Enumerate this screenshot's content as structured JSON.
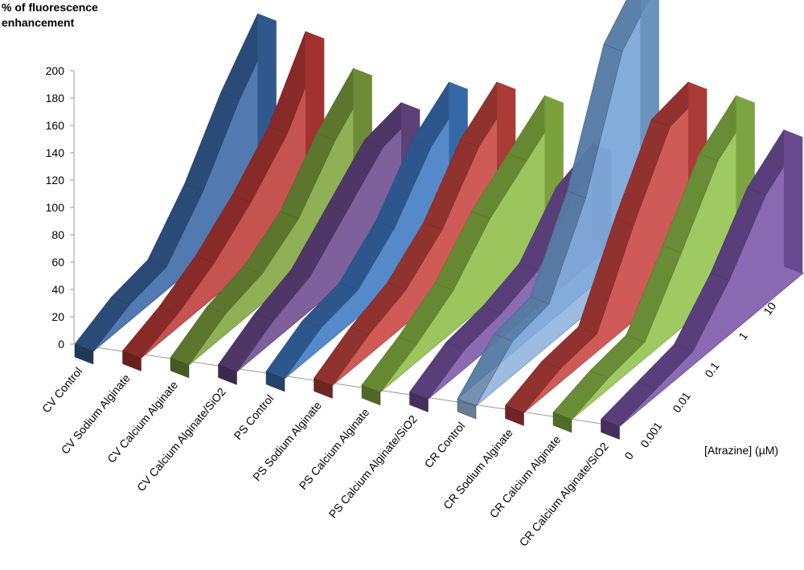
{
  "chart_data": {
    "type": "area-3d",
    "ylabel": "% of fluorescence\nenhancement",
    "zlabel": "[Atrazine] (µM)",
    "ylim": [
      0,
      200
    ],
    "yticks": [
      0,
      20,
      40,
      60,
      80,
      100,
      120,
      140,
      160,
      180,
      200
    ],
    "depth": [
      "0",
      "0.001",
      "0.01",
      "0.1",
      "1",
      "10"
    ],
    "series": [
      {
        "name": "CV Control",
        "values": [
          0,
          12,
          17,
          50,
          95,
          130
        ],
        "color": "#3a68a6"
      },
      {
        "name": "CV Sodium Alginate",
        "values": [
          0,
          10,
          25,
          47,
          75,
          122
        ],
        "color": "#bd3b38"
      },
      {
        "name": "CV Calcium Alginate",
        "values": [
          0,
          15,
          22,
          40,
          75,
          100
        ],
        "color": "#80a53e"
      },
      {
        "name": "CV Calcium Alginate/SiO2",
        "values": [
          0,
          15,
          25,
          50,
          75,
          80
        ],
        "color": "#6c4c8e"
      },
      {
        "name": "PS Control",
        "values": [
          0,
          15,
          20,
          43,
          80,
          100
        ],
        "color": "#3f79c3"
      },
      {
        "name": "PS Sodium Alginate",
        "values": [
          0,
          15,
          25,
          47,
          85,
          105
        ],
        "color": "#c84540"
      },
      {
        "name": "PS Calcium Alginate",
        "values": [
          0,
          13,
          30,
          60,
          80,
          100
        ],
        "color": "#8fbd47"
      },
      {
        "name": "PS Calcium Alginate/SiO2",
        "values": [
          0,
          14,
          18,
          27,
          60,
          70
        ],
        "color": "#7b57a8"
      },
      {
        "name": "CR Control",
        "values": [
          0,
          25,
          30,
          85,
          170,
          200
        ],
        "color": "#6f9ed4"
      },
      {
        "name": "CR Sodium Alginate",
        "values": [
          0,
          10,
          13,
          70,
          120,
          125
        ],
        "color": "#c94541"
      },
      {
        "name": "CR Calcium Alginate",
        "values": [
          0,
          8,
          12,
          55,
          100,
          120
        ],
        "color": "#92c24c"
      },
      {
        "name": "CR Calcium Alginate/SiO2",
        "values": [
          0,
          5,
          10,
          40,
          80,
          100
        ],
        "color": "#7a56a9"
      }
    ]
  }
}
